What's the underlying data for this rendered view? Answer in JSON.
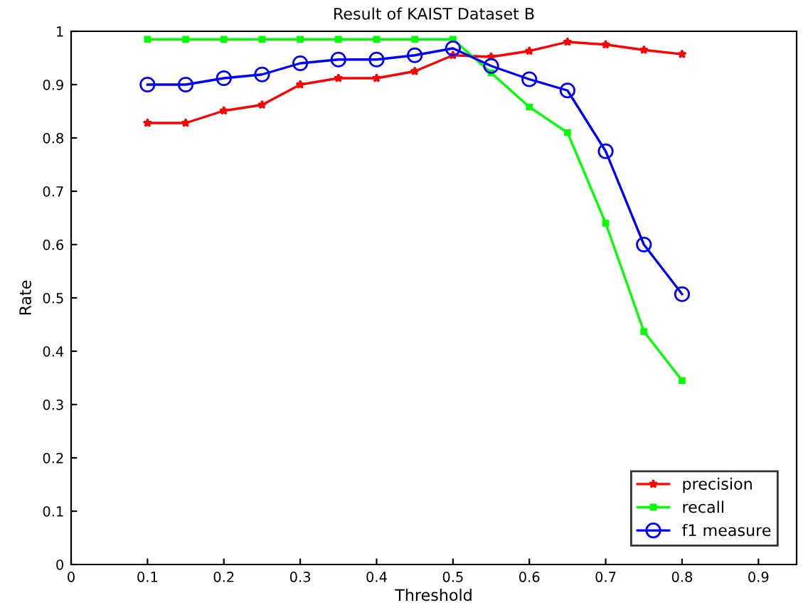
{
  "chart_data": {
    "type": "line",
    "title": "Result of KAIST Dataset B",
    "xlabel": "Threshold",
    "ylabel": "Rate",
    "x": [
      0.1,
      0.15,
      0.2,
      0.25,
      0.3,
      0.35,
      0.4,
      0.45,
      0.5,
      0.55,
      0.6,
      0.65,
      0.7,
      0.75,
      0.8
    ],
    "series": [
      {
        "name": "precision",
        "color": "#ff0000",
        "marker": "star",
        "values": [
          0.828,
          0.828,
          0.851,
          0.862,
          0.9,
          0.912,
          0.912,
          0.925,
          0.955,
          0.952,
          0.963,
          0.98,
          0.975,
          0.965,
          0.957
        ]
      },
      {
        "name": "recall",
        "color": "#00ff00",
        "marker": "square",
        "values": [
          0.985,
          0.985,
          0.985,
          0.985,
          0.985,
          0.985,
          0.985,
          0.985,
          0.985,
          0.922,
          0.858,
          0.81,
          0.64,
          0.437,
          0.345
        ]
      },
      {
        "name": "f1 measure",
        "color": "#0000ff",
        "marker": "circle",
        "values": [
          0.9,
          0.9,
          0.912,
          0.919,
          0.94,
          0.947,
          0.947,
          0.955,
          0.968,
          0.935,
          0.91,
          0.889,
          0.775,
          0.6,
          0.507
        ]
      }
    ],
    "xlim": [
      0,
      0.95
    ],
    "xticks": [
      0,
      0.1,
      0.2,
      0.3,
      0.4,
      0.5,
      0.6,
      0.7,
      0.8,
      0.9
    ],
    "ylim": [
      0,
      1
    ],
    "yticks": [
      0,
      0.1,
      0.2,
      0.3,
      0.4,
      0.5,
      0.6,
      0.7,
      0.8,
      0.9,
      1
    ],
    "grid": false,
    "legend": "bottom right",
    "line_style": "solid"
  }
}
